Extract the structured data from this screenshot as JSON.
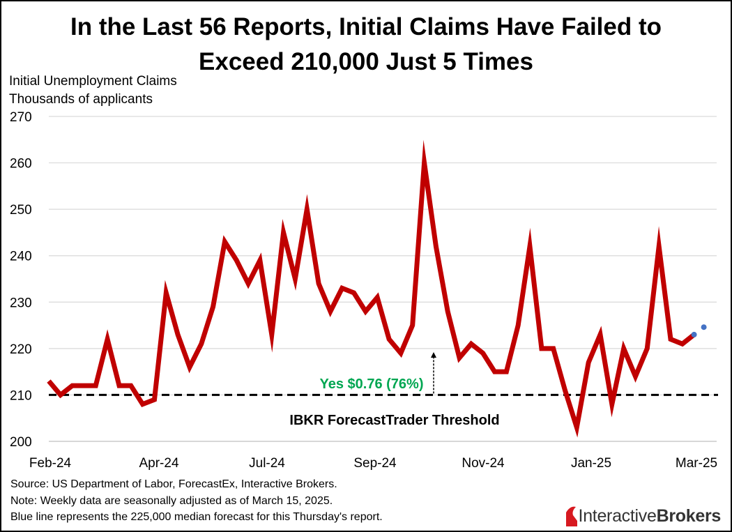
{
  "title_line1": "In the Last 56 Reports, Initial Claims Have Failed to",
  "title_line2": "Exceed 210,000 Just 5 Times",
  "footer": {
    "source": "Source: US Department of Labor, ForecastEx, Interactive Brokers.",
    "note": "Note: Weekly data are seasonally adjusted as of March 15, 2025.",
    "blue": "Blue line represents the 225,000 median forecast for this Thursday's report."
  },
  "logo": {
    "regular": "Interactive",
    "bold": "Brokers",
    "brand_color": "#d71920"
  },
  "colors": {
    "series": "#c00000",
    "forecast": "#4472c4",
    "yes_label": "#00a651",
    "threshold": "#000000",
    "grid": "#d9d9d9"
  },
  "chart_data": {
    "type": "line",
    "ylabel_lines": [
      "Initial Unemployment Claims",
      "Thousands of applicants"
    ],
    "ylim": [
      200,
      270
    ],
    "yticks": [
      200,
      210,
      220,
      230,
      240,
      250,
      260,
      270
    ],
    "xtick_labels": [
      "Feb-24",
      "Apr-24",
      "Jul-24",
      "Sep-24",
      "Nov-24",
      "Jan-25",
      "Mar-25"
    ],
    "grid": true,
    "series": [
      {
        "values": [
          213,
          210,
          212,
          212,
          212,
          222,
          212,
          212,
          208,
          209,
          232,
          223,
          216,
          221,
          229,
          243,
          239,
          234,
          239,
          223,
          245,
          235,
          250,
          234,
          228,
          233,
          232,
          228,
          231,
          222,
          219,
          225,
          260,
          242,
          228,
          218,
          221,
          219,
          215,
          215,
          225,
          242,
          220,
          220,
          211,
          203,
          217,
          223,
          208,
          220,
          214,
          220,
          242,
          222,
          221,
          223
        ]
      },
      {
        "values": [
          223,
          224.6
        ]
      }
    ],
    "threshold": {
      "value": 210,
      "label": "IBKR ForecastTrader Threshold"
    },
    "annotation": {
      "text": "Yes $0.76 (76%)"
    }
  }
}
